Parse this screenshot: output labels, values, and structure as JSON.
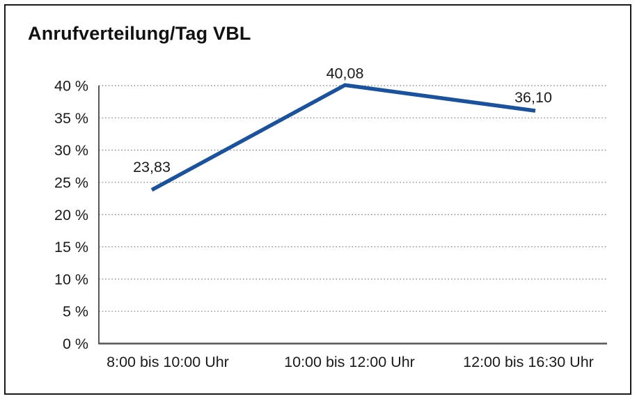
{
  "chart_data": {
    "type": "line",
    "title": "Anrufverteilung/Tag VBL",
    "categories": [
      "8:00 bis 10:00 Uhr",
      "10:00 bis 12:00 Uhr",
      "12:00 bis 16:30 Uhr"
    ],
    "values": [
      23.83,
      40.08,
      36.1
    ],
    "point_labels": [
      "23,83",
      "40,08",
      "36,10"
    ],
    "xlabel": "",
    "ylabel": "",
    "ylim": [
      0,
      40
    ],
    "ytick_step": 5,
    "ytick_labels": [
      "0 %",
      "5 %",
      "10 %",
      "15 %",
      "20 %",
      "25 %",
      "30 %",
      "35 %",
      "40 %"
    ],
    "grid": "horizontal-dotted",
    "legend": "none",
    "line_color": "#1A529E",
    "grid_color": "#7d7d7d",
    "yaxis_color": "#3a3a3a",
    "xaxis_color": "#555555",
    "text_color": "#1a1a1a",
    "background_color": "#ffffff",
    "frame_color": "#1a1a1a"
  }
}
